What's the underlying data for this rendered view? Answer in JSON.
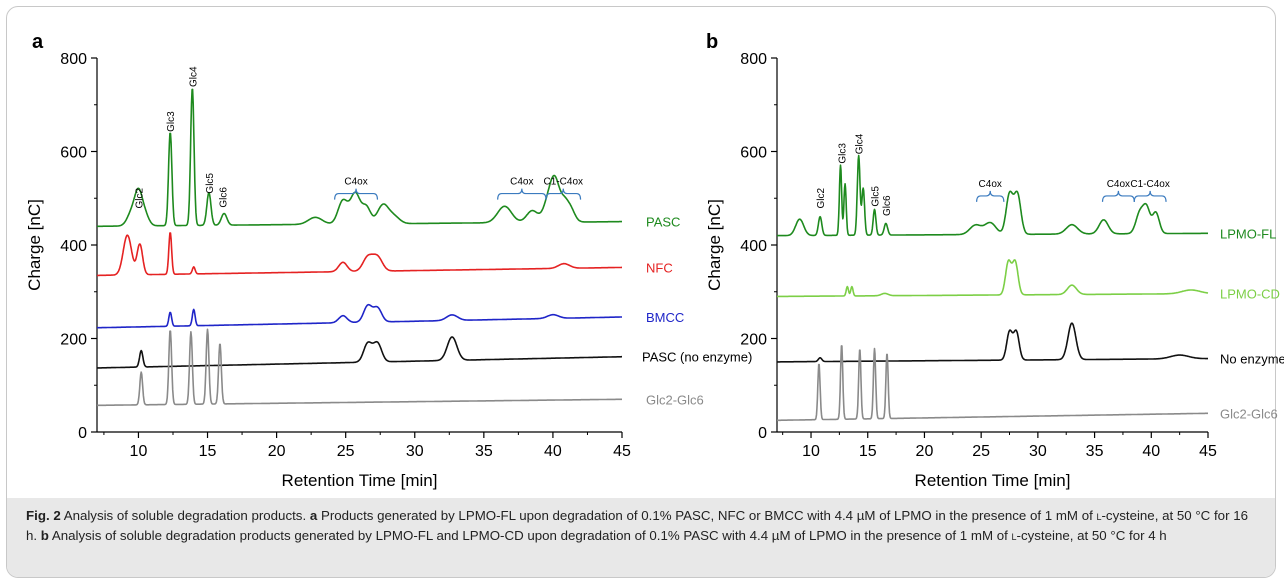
{
  "chart_data": [
    {
      "panel": "a",
      "type": "line",
      "xlabel": "Retention Time  [min]",
      "ylabel": "Charge  [nC]",
      "xlim": [
        7,
        45
      ],
      "ylim": [
        0,
        800
      ],
      "xticks": [
        10,
        15,
        20,
        25,
        30,
        35,
        40,
        45
      ],
      "yticks": [
        0,
        200,
        400,
        600,
        800
      ],
      "grid": false,
      "legend": "labels at right end of each trace",
      "series": [
        {
          "name": "PASC",
          "color": "#1e8a1e",
          "baseline": 440,
          "end": 450,
          "peaks": [
            [
              9.6,
              35,
              0.35
            ],
            [
              10.0,
              50,
              0.25
            ],
            [
              10.4,
              30,
              0.3
            ],
            [
              12.3,
              200,
              0.12
            ],
            [
              13.9,
              295,
              0.12
            ],
            [
              15.1,
              70,
              0.15
            ],
            [
              16.2,
              25,
              0.2
            ],
            [
              22.8,
              15,
              0.5
            ],
            [
              24.8,
              50,
              0.35
            ],
            [
              25.7,
              65,
              0.35
            ],
            [
              26.5,
              35,
              0.3
            ],
            [
              27.7,
              40,
              0.4
            ],
            [
              28.5,
              15,
              0.4
            ],
            [
              36.5,
              35,
              0.5
            ],
            [
              38.5,
              25,
              0.4
            ],
            [
              39.8,
              60,
              0.4
            ],
            [
              40.2,
              55,
              0.3
            ],
            [
              40.8,
              40,
              0.3
            ],
            [
              41.3,
              25,
              0.3
            ]
          ]
        },
        {
          "name": "NFC",
          "color": "#e52222",
          "baseline": 335,
          "end": 352,
          "peaks": [
            [
              9.2,
              85,
              0.3
            ],
            [
              10.1,
              65,
              0.2
            ],
            [
              12.3,
              90,
              0.1
            ],
            [
              14.0,
              15,
              0.1
            ],
            [
              24.8,
              20,
              0.3
            ],
            [
              26.6,
              30,
              0.35
            ],
            [
              27.3,
              30,
              0.35
            ],
            [
              40.8,
              10,
              0.4
            ]
          ]
        },
        {
          "name": "BMCC",
          "color": "#1f25c8",
          "baseline": 223,
          "end": 246,
          "peaks": [
            [
              12.3,
              30,
              0.1
            ],
            [
              14.0,
              35,
              0.1
            ],
            [
              24.8,
              15,
              0.3
            ],
            [
              26.6,
              35,
              0.3
            ],
            [
              27.3,
              30,
              0.3
            ],
            [
              32.7,
              12,
              0.4
            ],
            [
              40.0,
              8,
              0.4
            ]
          ]
        },
        {
          "name": "PASC (no enzyme)",
          "color": "#111111",
          "baseline": 137,
          "end": 161,
          "peaks": [
            [
              10.2,
              35,
              0.12
            ],
            [
              26.6,
              40,
              0.3
            ],
            [
              27.3,
              40,
              0.3
            ],
            [
              32.7,
              50,
              0.35
            ]
          ]
        },
        {
          "name": "Glc2-Glc6",
          "color": "#8a8a8a",
          "baseline": 57,
          "end": 70,
          "peaks": [
            [
              10.2,
              70,
              0.1
            ],
            [
              12.3,
              160,
              0.1
            ],
            [
              13.8,
              155,
              0.1
            ],
            [
              15.0,
              160,
              0.1
            ],
            [
              15.9,
              130,
              0.1
            ]
          ]
        }
      ],
      "annotations": [
        {
          "text": "Glc2",
          "x": 10.0,
          "y": 478
        },
        {
          "text": "Glc3",
          "x": 12.3,
          "y": 642
        },
        {
          "text": "Glc4",
          "x": 13.9,
          "y": 738
        },
        {
          "text": "Glc5",
          "x": 15.1,
          "y": 510
        },
        {
          "text": "Glc6",
          "x": 16.1,
          "y": 480
        }
      ],
      "brackets": [
        {
          "text": "C4ox",
          "x1": 24.2,
          "x2": 27.3,
          "y": 510
        },
        {
          "text": "C4ox",
          "x1": 36.0,
          "x2": 39.5,
          "y": 510
        },
        {
          "text": "C1-C4ox",
          "x1": 39.5,
          "x2": 42.0,
          "y": 510
        }
      ]
    },
    {
      "panel": "b",
      "type": "line",
      "xlabel": "Retention Time  [min]",
      "ylabel": "Charge  [nC]",
      "xlim": [
        7,
        45
      ],
      "ylim": [
        0,
        800
      ],
      "xticks": [
        10,
        15,
        20,
        25,
        30,
        35,
        40,
        45
      ],
      "yticks": [
        0,
        200,
        400,
        600,
        800
      ],
      "grid": false,
      "legend": "labels at right end of each trace",
      "series": [
        {
          "name": "LPMO-FL",
          "color": "#1e8a1e",
          "baseline": 420,
          "end": 425,
          "peaks": [
            [
              9.0,
              35,
              0.35
            ],
            [
              10.8,
              40,
              0.15
            ],
            [
              12.6,
              150,
              0.1
            ],
            [
              13.0,
              110,
              0.1
            ],
            [
              14.2,
              170,
              0.12
            ],
            [
              14.6,
              100,
              0.12
            ],
            [
              15.6,
              55,
              0.12
            ],
            [
              16.6,
              25,
              0.15
            ],
            [
              24.5,
              20,
              0.5
            ],
            [
              25.8,
              25,
              0.5
            ],
            [
              27.5,
              85,
              0.3
            ],
            [
              28.2,
              85,
              0.3
            ],
            [
              33.0,
              20,
              0.5
            ],
            [
              35.8,
              30,
              0.4
            ],
            [
              39.0,
              45,
              0.35
            ],
            [
              39.6,
              50,
              0.3
            ],
            [
              40.4,
              45,
              0.3
            ]
          ]
        },
        {
          "name": "LPMO-CD",
          "color": "#7ccf46",
          "baseline": 290,
          "end": 296,
          "peaks": [
            [
              13.2,
              20,
              0.1
            ],
            [
              13.6,
              20,
              0.1
            ],
            [
              16.5,
              5,
              0.3
            ],
            [
              27.4,
              70,
              0.25
            ],
            [
              28.0,
              70,
              0.25
            ],
            [
              33.0,
              20,
              0.4
            ],
            [
              43.5,
              8,
              0.8
            ]
          ]
        },
        {
          "name": "No enzyme",
          "color": "#111111",
          "baseline": 150,
          "end": 157,
          "peaks": [
            [
              10.8,
              8,
              0.15
            ],
            [
              27.5,
              60,
              0.25
            ],
            [
              28.1,
              60,
              0.25
            ],
            [
              33.0,
              78,
              0.35
            ],
            [
              42.5,
              8,
              0.8
            ]
          ]
        },
        {
          "name": "Glc2-Glc6",
          "color": "#8a8a8a",
          "baseline": 25,
          "end": 40,
          "peaks": [
            [
              10.7,
              120,
              0.1
            ],
            [
              12.7,
              160,
              0.1
            ],
            [
              14.3,
              150,
              0.1
            ],
            [
              15.6,
              150,
              0.1
            ],
            [
              16.7,
              140,
              0.1
            ]
          ]
        }
      ],
      "annotations": [
        {
          "text": "Glc2",
          "x": 10.8,
          "y": 478
        },
        {
          "text": "Glc3",
          "x": 12.7,
          "y": 574
        },
        {
          "text": "Glc4",
          "x": 14.2,
          "y": 594
        },
        {
          "text": "Glc5",
          "x": 15.6,
          "y": 482
        },
        {
          "text": "Glc6",
          "x": 16.6,
          "y": 462
        }
      ],
      "brackets": [
        {
          "text": "C4ox",
          "x1": 24.6,
          "x2": 27.0,
          "y": 505
        },
        {
          "text": "C4ox",
          "x1": 35.7,
          "x2": 38.5,
          "y": 505
        },
        {
          "text": "C1-C4ox",
          "x1": 38.5,
          "x2": 41.3,
          "y": 505
        }
      ]
    }
  ],
  "panels": {
    "a": {
      "letter": "a"
    },
    "b": {
      "letter": "b"
    }
  },
  "caption": {
    "fig_label": "Fig. 2",
    "part1": "  Analysis of soluble degradation products. ",
    "a_letter": "a",
    "part2": " Products generated by LPMO-FL upon degradation of 0.1% PASC, NFC or BMCC with 4.4 µM of LPMO in the presence of 1 mM of ",
    "l_prefix_1": "l",
    "part3": "-cysteine, at 50 °C for 16 h. ",
    "b_letter": "b",
    "part4": " Analysis of soluble degradation products generated by LPMO-FL and LPMO-CD upon degradation of 0.1% PASC with 4.4 µM of LPMO in the presence of 1 mM of ",
    "l_prefix_2": "l",
    "part5": "-cysteine, at 50 °C for 4 h"
  }
}
